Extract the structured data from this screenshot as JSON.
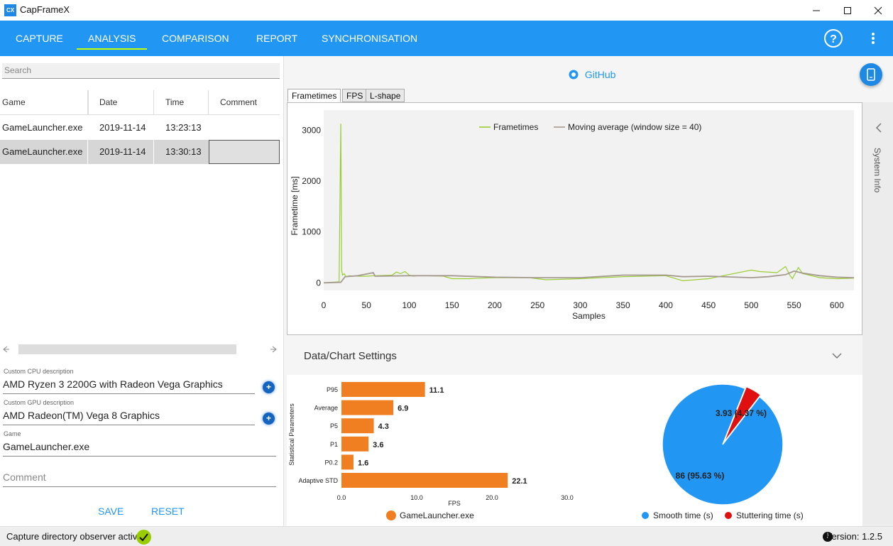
{
  "window": {
    "title": "CapFrameX",
    "icon_text": "CX"
  },
  "nav": {
    "tabs": [
      {
        "label": "CAPTURE"
      },
      {
        "label": "ANALYSIS",
        "active": true
      },
      {
        "label": "COMPARISON"
      },
      {
        "label": "REPORT"
      },
      {
        "label": "SYNCHRONISATION"
      }
    ],
    "help_icon": "help-circle-icon",
    "menu_icon": "more-vertical-icon"
  },
  "left": {
    "search_placeholder": "Search",
    "columns": [
      "Game",
      "Date",
      "Time",
      "Comment"
    ],
    "rows": [
      {
        "game": "GameLauncher.exe",
        "date": "2019-11-14",
        "time": "13:23:13",
        "comment": ""
      },
      {
        "game": "GameLauncher.exe",
        "date": "2019-11-14",
        "time": "13:30:13",
        "comment": ""
      }
    ],
    "cpu_label": "Custom CPU description",
    "cpu_value": "AMD Ryzen 3 2200G with Radeon Vega Graphics",
    "gpu_label": "Custom GPU description",
    "gpu_value": "AMD Radeon(TM) Vega 8 Graphics",
    "game_label": "Game",
    "game_value": "GameLauncher.exe",
    "comment_placeholder": "Comment",
    "save_label": "SAVE",
    "reset_label": "RESET"
  },
  "right": {
    "github_label": "GitHub",
    "chart_tabs": [
      "Frametimes",
      "FPS",
      "L-shape"
    ],
    "sysinfo_label": "System Info",
    "settings_title": "Data/Chart Settings"
  },
  "status": {
    "observer_text": "Capture directory observer active:",
    "version_text": "Version:  1.2.5"
  },
  "colors": {
    "accent": "#2196f3",
    "frametimes": "#9acd32",
    "moving_avg": "#a59a8f",
    "bars": "#f07f22",
    "smooth": "#2196f3",
    "stutter": "#e01010"
  },
  "chart_data": [
    {
      "type": "line",
      "xlabel": "Samples",
      "ylabel": "Frametime [ms]",
      "xlim": [
        0,
        620
      ],
      "ylim": [
        -150,
        3400
      ],
      "xticks": [
        0,
        50,
        100,
        150,
        200,
        250,
        300,
        350,
        400,
        450,
        500,
        550,
        600
      ],
      "yticks": [
        0,
        1000,
        2000,
        3000
      ],
      "legend": "top-center",
      "series": [
        {
          "name": "Frametimes",
          "x": [
            0,
            18,
            20,
            21,
            22,
            24,
            26,
            30,
            40,
            50,
            60,
            80,
            85,
            90,
            95,
            100,
            105,
            110,
            120,
            140,
            150,
            170,
            180,
            200,
            240,
            260,
            300,
            350,
            400,
            420,
            450,
            500,
            510,
            530,
            540,
            545,
            548,
            555,
            560,
            580,
            600,
            620
          ],
          "y": [
            0,
            20,
            3130,
            250,
            150,
            180,
            120,
            140,
            130,
            130,
            140,
            150,
            210,
            180,
            220,
            150,
            130,
            140,
            140,
            130,
            80,
            80,
            90,
            100,
            100,
            60,
            80,
            120,
            140,
            40,
            80,
            250,
            220,
            200,
            320,
            150,
            80,
            300,
            180,
            100,
            80,
            90
          ]
        },
        {
          "name": "Moving average (window size = 40)",
          "x": [
            0,
            20,
            25,
            40,
            58,
            60,
            100,
            150,
            200,
            250,
            300,
            350,
            400,
            420,
            450,
            500,
            520,
            540,
            550,
            560,
            580,
            600,
            620
          ],
          "y": [
            0,
            10,
            120,
            140,
            200,
            130,
            140,
            140,
            110,
            100,
            100,
            150,
            150,
            120,
            130,
            100,
            120,
            160,
            230,
            190,
            140,
            110,
            100
          ]
        }
      ]
    },
    {
      "type": "bar",
      "orientation": "horizontal",
      "ylabel": "Statistical Parameters",
      "xlabel": "FPS",
      "xlim": [
        0,
        30
      ],
      "xticks": [
        "0.0",
        "10.0",
        "20.0",
        "30.0"
      ],
      "categories": [
        "P95",
        "Average",
        "P5",
        "P1",
        "P0.2",
        "Adaptive STD"
      ],
      "series": [
        {
          "name": "GameLauncher.exe",
          "values": [
            11.1,
            6.9,
            4.3,
            3.6,
            1.6,
            22.1
          ]
        }
      ],
      "value_labels": [
        "11.1",
        "6.9",
        "4.3",
        "3.6",
        "1.6",
        "22.1"
      ]
    },
    {
      "type": "pie",
      "slices": [
        {
          "name": "Smooth time (s)",
          "value": 86,
          "label": "86 (95.63 %)"
        },
        {
          "name": "Stuttering time (s)",
          "value": 3.93,
          "label": "3.93 (4.37 %)"
        }
      ],
      "legend": "bottom"
    }
  ]
}
